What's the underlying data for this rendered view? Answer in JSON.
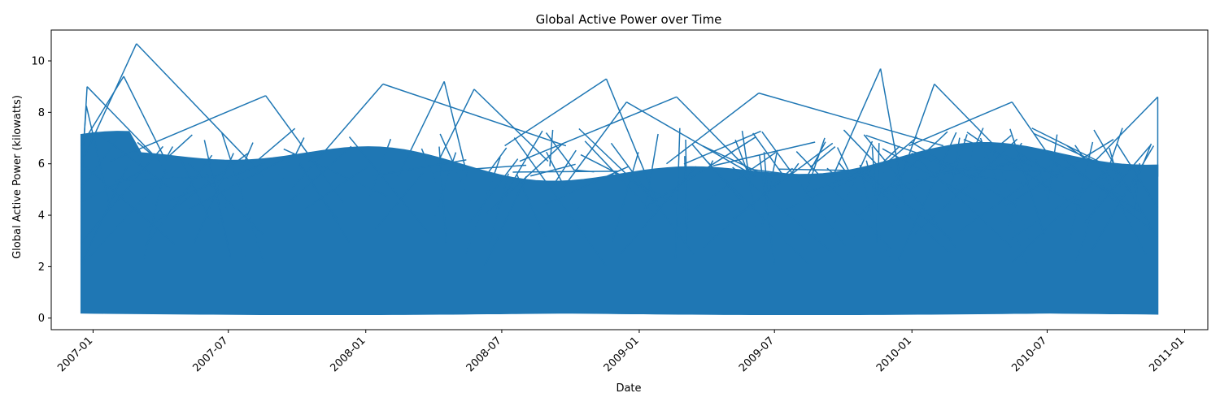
{
  "chart_data": {
    "type": "line",
    "title": "Global Active Power over Time",
    "xlabel": "Date",
    "ylabel": "Global Active Power (kilowatts)",
    "xlim": [
      "2006-11-06",
      "2011-02-01"
    ],
    "ylim": [
      -0.45,
      11.2
    ],
    "x_ticks": [
      "2007-01",
      "2007-07",
      "2008-01",
      "2008-07",
      "2009-01",
      "2009-07",
      "2010-01",
      "2010-07",
      "2011-01"
    ],
    "y_ticks": [
      0,
      2,
      4,
      6,
      8,
      10
    ],
    "grid": false,
    "legend": "none",
    "series": [
      {
        "color": "#1f77b4",
        "data_range": [
          "2006-12-16",
          "2010-11-26"
        ],
        "typical_range": [
          0.2,
          6.0
        ],
        "peaks": [
          {
            "x": "2006-12-23",
            "y": 8.25
          },
          {
            "x": "2006-12-24",
            "y": 9.0
          },
          {
            "x": "2007-02-11",
            "y": 9.4
          },
          {
            "x": "2007-02-28",
            "y": 10.67
          },
          {
            "x": "2007-08-20",
            "y": 8.65
          },
          {
            "x": "2008-01-24",
            "y": 9.1
          },
          {
            "x": "2008-04-15",
            "y": 9.2
          },
          {
            "x": "2008-05-25",
            "y": 8.9
          },
          {
            "x": "2008-11-18",
            "y": 9.3
          },
          {
            "x": "2008-12-15",
            "y": 8.4
          },
          {
            "x": "2009-02-20",
            "y": 8.6
          },
          {
            "x": "2009-06-10",
            "y": 8.75
          },
          {
            "x": "2009-11-20",
            "y": 9.7
          },
          {
            "x": "2010-01-31",
            "y": 9.1
          },
          {
            "x": "2010-05-15",
            "y": 8.4
          },
          {
            "x": "2010-11-26",
            "y": 8.6
          }
        ]
      }
    ]
  }
}
